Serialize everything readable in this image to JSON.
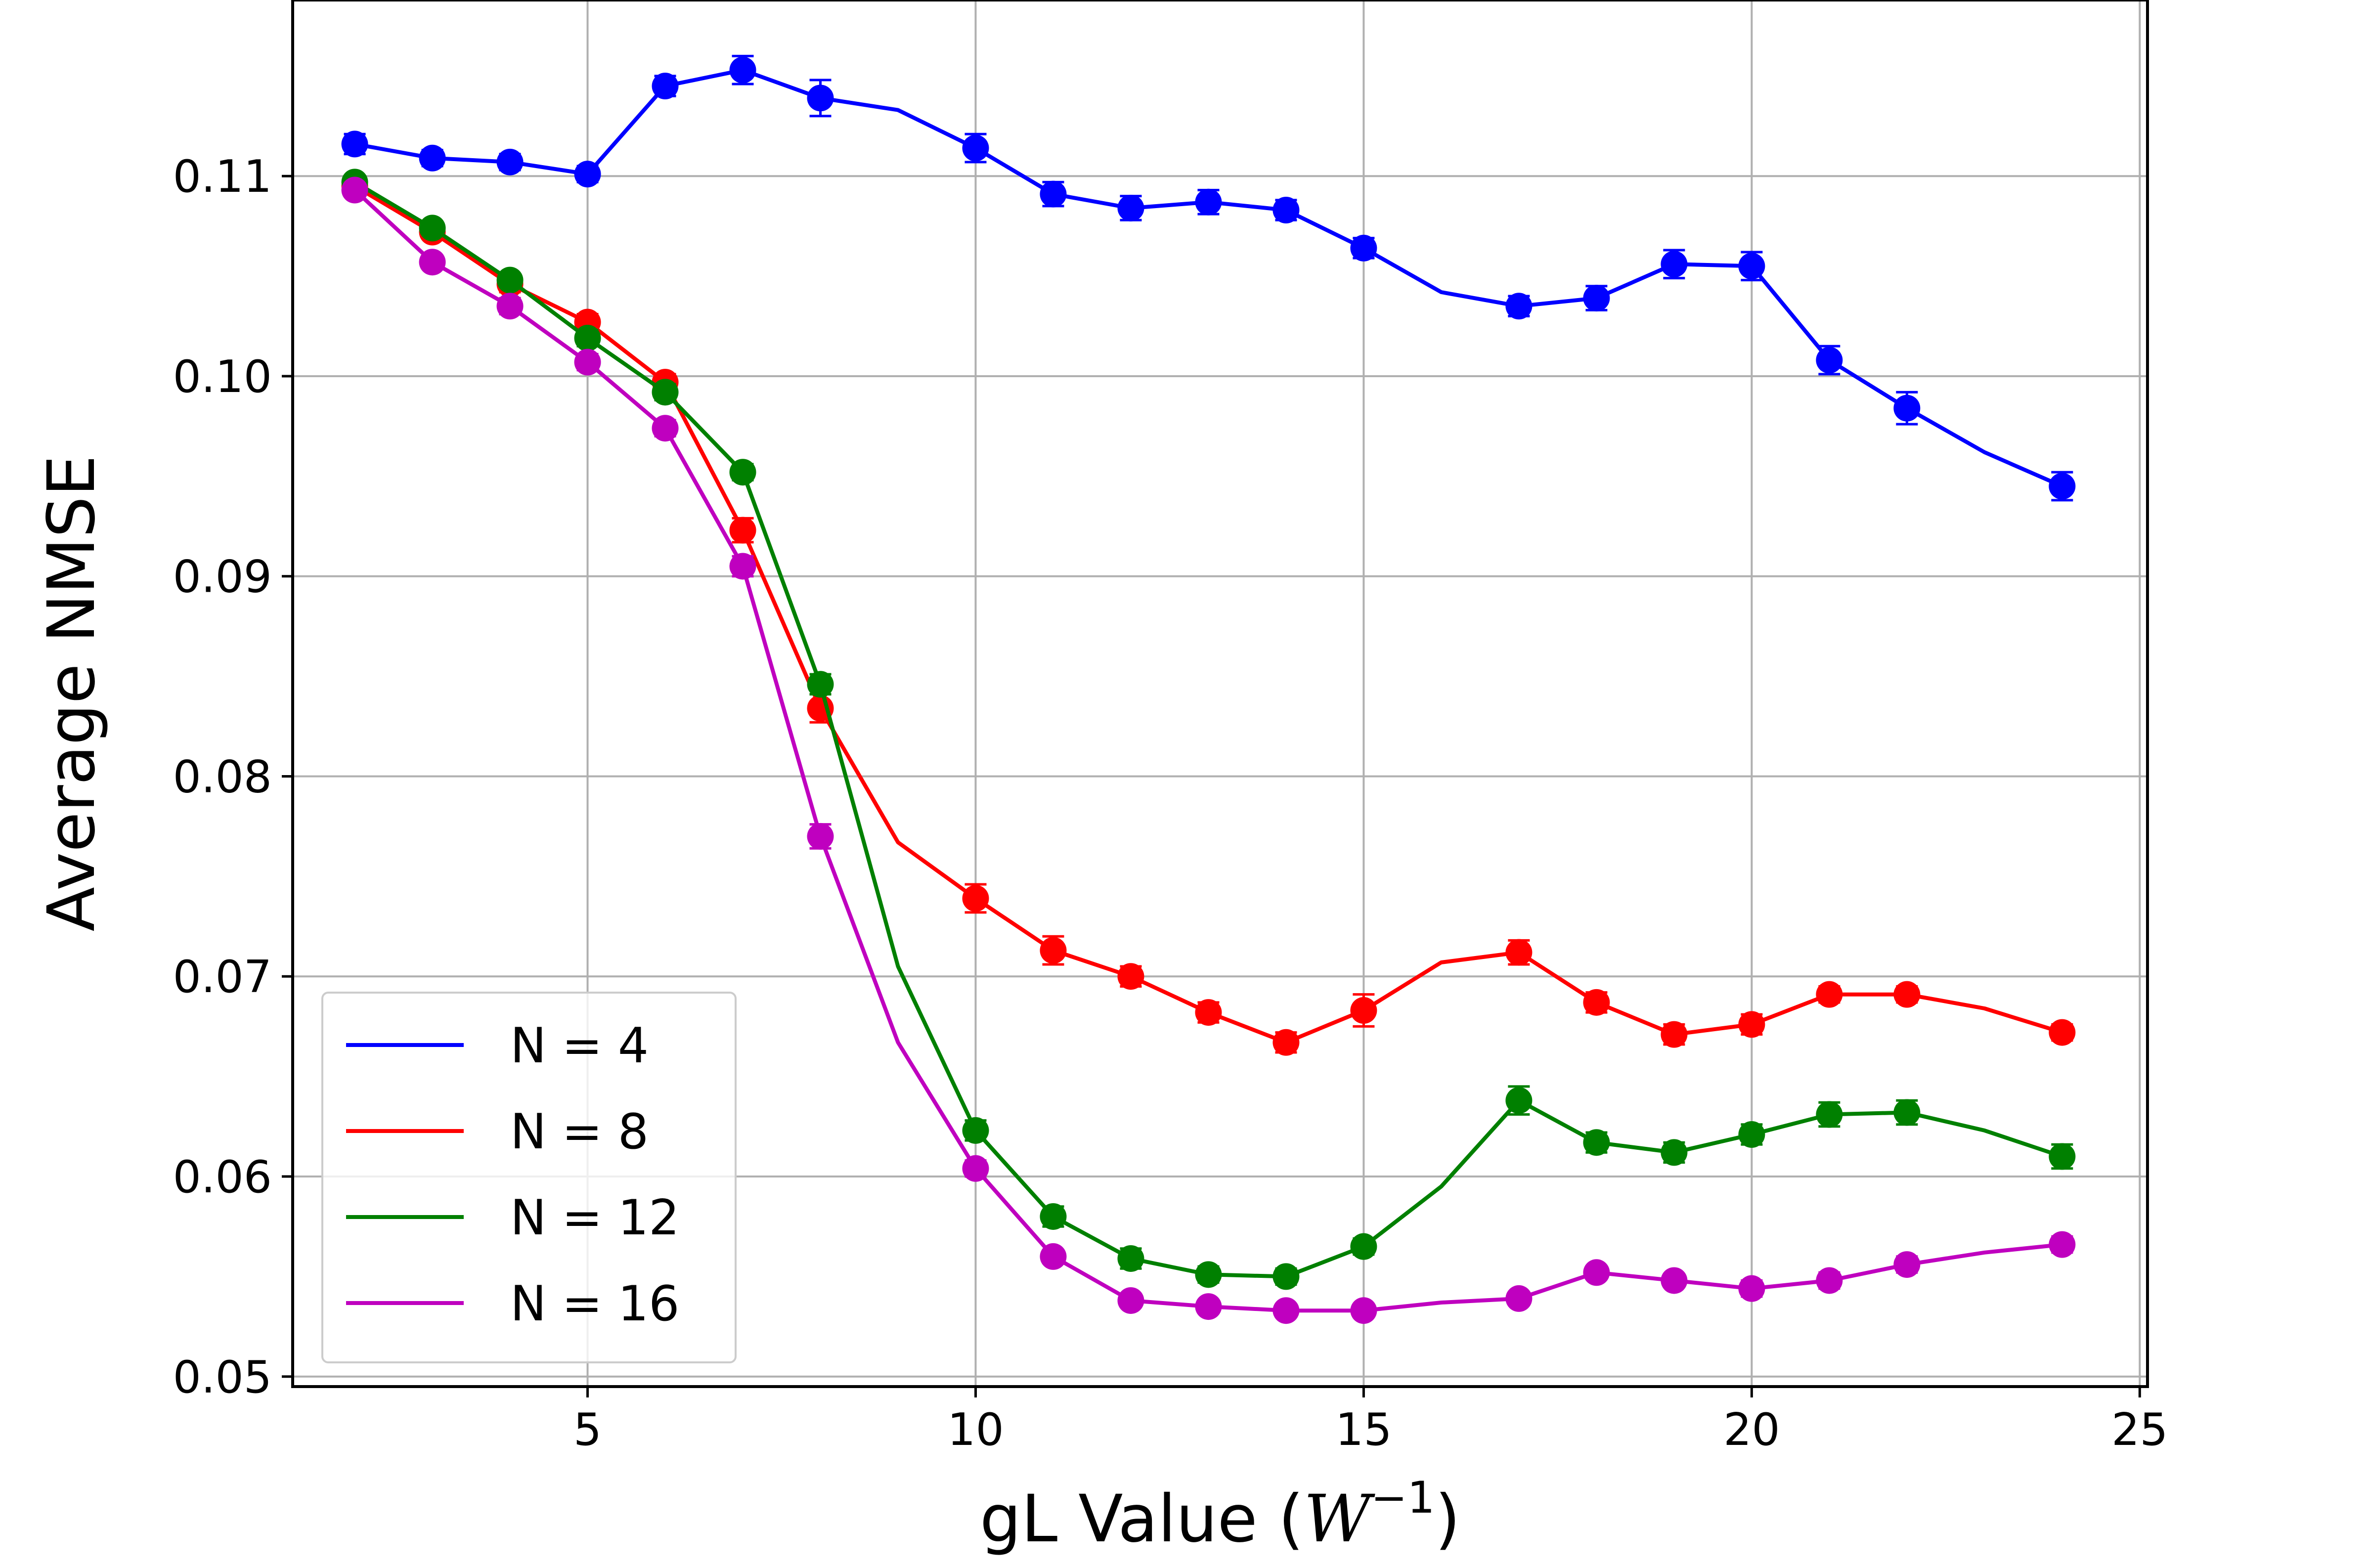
{
  "chart_data": {
    "type": "line",
    "title": "",
    "xlabel": "gL Value (W⁻¹)",
    "xlabel_main": "gL Value (",
    "xlabel_var": "W",
    "xlabel_sup": "−1",
    "xlabel_close": ")",
    "ylabel": "Average NMSE",
    "xlim": [
      1.2,
      25.1
    ],
    "ylim": [
      0.0495,
      0.1188
    ],
    "xticks": [
      5,
      10,
      15,
      20,
      25
    ],
    "xtick_labels": [
      "5",
      "10",
      "15",
      "20",
      "25"
    ],
    "yticks": [
      0.05,
      0.06,
      0.07,
      0.08,
      0.09,
      0.1,
      0.11
    ],
    "ytick_labels": [
      "0.05",
      "0.06",
      "0.07",
      "0.08",
      "0.09",
      "0.10",
      "0.11"
    ],
    "grid": true,
    "legend_position": "lower-left",
    "x": [
      2,
      3,
      4,
      5,
      6,
      7,
      8,
      9,
      10,
      11,
      12,
      13,
      14,
      15,
      16,
      17,
      18,
      19,
      20,
      21,
      22,
      23,
      24
    ],
    "series": [
      {
        "name": "N = 4",
        "color": "#0000ff",
        "values": [
          0.1116,
          0.1109,
          0.1107,
          0.1101,
          0.1145,
          0.1153,
          0.1139,
          0.1133,
          0.1114,
          0.1091,
          0.1084,
          0.1087,
          0.1083,
          0.1064,
          0.1042,
          0.1035,
          0.1039,
          0.1056,
          0.1055,
          0.1008,
          0.0984,
          0.0962,
          0.0945
        ],
        "markers": [
          true,
          true,
          true,
          true,
          true,
          true,
          true,
          false,
          true,
          true,
          true,
          true,
          true,
          true,
          false,
          true,
          true,
          true,
          true,
          true,
          true,
          false,
          true
        ],
        "errors": [
          0.0005,
          0.0004,
          0.0004,
          0.0004,
          0.0005,
          0.0007,
          0.0009,
          0,
          0.0007,
          0.0006,
          0.0006,
          0.0006,
          0.0005,
          0.0005,
          0,
          0.0005,
          0.0006,
          0.0007,
          0.0007,
          0.0007,
          0.0008,
          0,
          0.0007
        ]
      },
      {
        "name": "N = 8",
        "color": "#ff0000",
        "values": [
          0.1095,
          0.1072,
          0.1046,
          0.1027,
          0.0997,
          0.0923,
          0.0834,
          0.0767,
          0.0739,
          0.0713,
          0.07,
          0.0682,
          0.0667,
          0.0683,
          0.0707,
          0.0712,
          0.0687,
          0.0671,
          0.0676,
          0.0691,
          0.0691,
          0.0684,
          0.0672
        ],
        "markers": [
          true,
          true,
          true,
          true,
          true,
          true,
          true,
          false,
          true,
          true,
          true,
          true,
          true,
          true,
          false,
          true,
          true,
          true,
          true,
          true,
          true,
          false,
          true
        ],
        "errors": [
          0.0003,
          0.0003,
          0.0004,
          0.0004,
          0.0004,
          0.0006,
          0.0007,
          0,
          0.0007,
          0.0007,
          0.0005,
          0.0005,
          0.0005,
          0.0008,
          0,
          0.0006,
          0.0005,
          0.0005,
          0.0005,
          0.0004,
          0.0004,
          0,
          0.0004
        ]
      },
      {
        "name": "N = 12",
        "color": "#008000",
        "values": [
          0.1097,
          0.1074,
          0.1048,
          0.1019,
          0.0992,
          0.0952,
          0.0846,
          0.0705,
          0.0623,
          0.058,
          0.0559,
          0.0551,
          0.055,
          0.0565,
          0.0595,
          0.0638,
          0.0617,
          0.0612,
          0.0621,
          0.0631,
          0.0632,
          0.0623,
          0.061
        ],
        "markers": [
          true,
          true,
          true,
          true,
          true,
          true,
          true,
          false,
          true,
          true,
          true,
          true,
          true,
          true,
          false,
          true,
          true,
          true,
          true,
          true,
          true,
          false,
          true
        ],
        "errors": [
          0.0003,
          0.0003,
          0.0003,
          0.0004,
          0.0004,
          0.0004,
          0.0005,
          0,
          0.0005,
          0.0005,
          0.0005,
          0.0004,
          0.0004,
          0.0004,
          0,
          0.0007,
          0.0005,
          0.0005,
          0.0005,
          0.0006,
          0.0006,
          0,
          0.0006
        ]
      },
      {
        "name": "N = 16",
        "color": "#bf00bf",
        "values": [
          0.1093,
          0.1057,
          0.1035,
          0.1007,
          0.0974,
          0.0905,
          0.077,
          0.0667,
          0.0604,
          0.056,
          0.0538,
          0.0535,
          0.0533,
          0.0533,
          0.0537,
          0.0539,
          0.0552,
          0.0548,
          0.0544,
          0.0548,
          0.0556,
          0.0562,
          0.0566
        ],
        "markers": [
          true,
          true,
          true,
          true,
          true,
          true,
          true,
          false,
          true,
          true,
          true,
          true,
          true,
          true,
          false,
          true,
          true,
          true,
          true,
          true,
          true,
          false,
          true
        ],
        "errors": [
          0.0003,
          0.0003,
          0.0004,
          0.0004,
          0.0004,
          0.0005,
          0.0006,
          0,
          0.0004,
          0.0003,
          0.0003,
          0.0003,
          0.0003,
          0.0003,
          0,
          0.0003,
          0.0003,
          0.0003,
          0.0004,
          0.0004,
          0.0004,
          0,
          0.0004
        ]
      }
    ]
  }
}
